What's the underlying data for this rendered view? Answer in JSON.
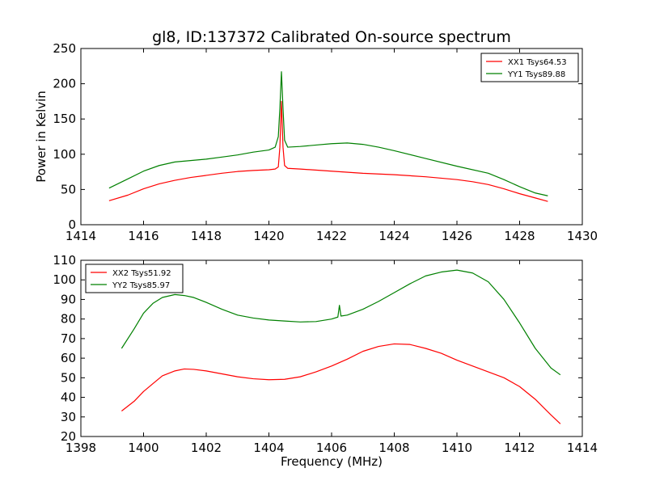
{
  "chart_data": [
    {
      "type": "line",
      "title": "gl8, ID:137372 Calibrated On-source spectrum",
      "xlabel": "",
      "ylabel": "Power in Kelvin",
      "xlim": [
        1414,
        1430
      ],
      "ylim": [
        0,
        250
      ],
      "xticks": [
        1414,
        1416,
        1418,
        1420,
        1422,
        1424,
        1426,
        1428,
        1430
      ],
      "yticks": [
        0,
        50,
        100,
        150,
        200,
        250
      ],
      "grid": false,
      "legend_position": "top-right",
      "series": [
        {
          "name": "XX1 Tsys64.53",
          "color": "#ff0000",
          "x": [
            1414.9,
            1415.5,
            1416.0,
            1416.5,
            1417.0,
            1417.5,
            1418.0,
            1418.5,
            1419.0,
            1419.5,
            1420.0,
            1420.2,
            1420.3,
            1420.35,
            1420.4,
            1420.45,
            1420.5,
            1420.6,
            1421.0,
            1422.0,
            1423.0,
            1424.0,
            1425.0,
            1426.0,
            1426.5,
            1427.0,
            1427.5,
            1428.0,
            1428.5,
            1428.9
          ],
          "y": [
            34,
            42,
            51,
            58,
            63,
            67,
            70,
            73,
            75.5,
            77,
            78,
            79,
            82,
            110,
            175,
            110,
            84,
            80,
            79,
            76,
            73,
            71,
            68,
            64,
            61,
            57,
            51,
            44,
            38,
            33
          ]
        },
        {
          "name": "YY1 Tsys89.88",
          "color": "#008000",
          "x": [
            1414.9,
            1415.5,
            1416.0,
            1416.5,
            1417.0,
            1417.5,
            1418.0,
            1418.5,
            1419.0,
            1419.5,
            1420.0,
            1420.2,
            1420.3,
            1420.35,
            1420.4,
            1420.45,
            1420.5,
            1420.6,
            1421.0,
            1421.5,
            1422.0,
            1422.5,
            1423.0,
            1423.5,
            1424.0,
            1425.0,
            1426.0,
            1427.0,
            1427.5,
            1428.0,
            1428.5,
            1428.9
          ],
          "y": [
            52,
            65,
            76,
            84,
            89,
            91,
            93,
            96,
            99,
            103,
            106,
            110,
            125,
            165,
            217,
            165,
            120,
            110,
            111,
            113,
            115,
            116,
            114,
            110,
            105,
            94,
            83,
            73,
            64,
            54,
            45,
            41
          ]
        }
      ]
    },
    {
      "type": "line",
      "title": "",
      "xlabel": "Frequency (MHz)",
      "ylabel": "",
      "xlim": [
        1398,
        1414
      ],
      "ylim": [
        20,
        110
      ],
      "xticks": [
        1398,
        1400,
        1402,
        1404,
        1406,
        1408,
        1410,
        1412,
        1414
      ],
      "yticks": [
        20,
        30,
        40,
        50,
        60,
        70,
        80,
        90,
        100,
        110
      ],
      "grid": false,
      "legend_position": "top-left",
      "series": [
        {
          "name": "XX2 Tsys51.92",
          "color": "#ff0000",
          "x": [
            1399.3,
            1399.7,
            1400.0,
            1400.3,
            1400.6,
            1401.0,
            1401.3,
            1401.6,
            1402.0,
            1402.5,
            1403.0,
            1403.5,
            1404.0,
            1404.5,
            1405.0,
            1405.5,
            1406.0,
            1406.5,
            1407.0,
            1407.5,
            1408.0,
            1408.5,
            1409.0,
            1409.5,
            1410.0,
            1410.5,
            1411.0,
            1411.5,
            1412.0,
            1412.5,
            1413.0,
            1413.3
          ],
          "y": [
            33,
            38,
            43,
            47,
            51,
            53.5,
            54.5,
            54.3,
            53.5,
            52,
            50.5,
            49.5,
            49,
            49.2,
            50.5,
            53,
            56,
            59.5,
            63.5,
            66,
            67.3,
            67,
            65,
            62.5,
            59,
            56,
            53,
            50,
            45.5,
            39,
            31,
            26.5
          ]
        },
        {
          "name": "YY2 Tsys85.97",
          "color": "#008000",
          "x": [
            1399.3,
            1399.7,
            1400.0,
            1400.3,
            1400.6,
            1401.0,
            1401.3,
            1401.6,
            1402.0,
            1402.5,
            1403.0,
            1403.5,
            1404.0,
            1404.5,
            1405.0,
            1405.5,
            1406.0,
            1406.2,
            1406.25,
            1406.3,
            1406.5,
            1407.0,
            1407.5,
            1408.0,
            1408.5,
            1409.0,
            1409.5,
            1410.0,
            1410.5,
            1411.0,
            1411.5,
            1412.0,
            1412.5,
            1413.0,
            1413.3
          ],
          "y": [
            65,
            75,
            83,
            88,
            91,
            92.5,
            92,
            91,
            88.5,
            85,
            82,
            80.5,
            79.5,
            79,
            78.5,
            78.7,
            80,
            81,
            87,
            81.5,
            82,
            85,
            89,
            93.5,
            98,
            102,
            104,
            105,
            103.5,
            99,
            90,
            78,
            65,
            55,
            51.5
          ]
        }
      ]
    }
  ]
}
